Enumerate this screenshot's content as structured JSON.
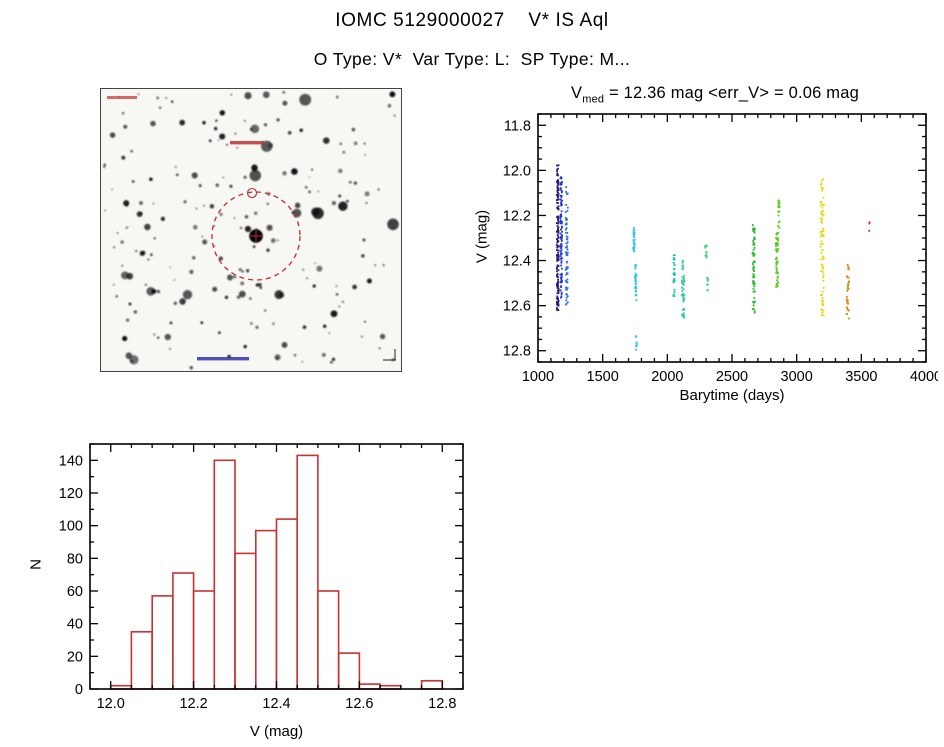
{
  "page": {
    "title": "IOMC 5129000027    V* IS Aql",
    "subtitle": "O Type: V*  Var Type: L:  SP Type: M..."
  },
  "finder_chart": {
    "description": "grayscale star-field finder chart with target star circled in red",
    "annotation_color": "#c03030",
    "annotation_color2": "#3333aa"
  },
  "chart_data": [
    {
      "type": "scatter",
      "title": "V_med = 12.36 mag <err_V> = 0.06 mag",
      "title_parts": {
        "base": "V",
        "sub": "med",
        "rest": " = 12.36 mag <err_V> = 0.06 mag"
      },
      "v_med_mag": 12.36,
      "err_v_mag": 0.06,
      "xlabel": "Barytime (days)",
      "ylabel": "V (mag)",
      "xlim": [
        1000,
        4000
      ],
      "ylim": [
        11.75,
        12.85
      ],
      "y_axis_inverted_magnitudes": true,
      "xticks": [
        1000,
        1500,
        2000,
        2500,
        3000,
        3500,
        4000
      ],
      "xtick_labels": [
        "1000",
        "1500",
        "2000",
        "2500",
        "3000",
        "3500",
        "4000"
      ],
      "yticks": [
        11.8,
        12.0,
        12.2,
        12.4,
        12.6,
        12.8
      ],
      "ytick_labels": [
        "11.8",
        "12.0",
        "12.2",
        "12.4",
        "12.6",
        "12.8"
      ],
      "x_minor_step": 100,
      "y_minor_step": 0.05,
      "legend_position": "none",
      "grid": false,
      "clusters": [
        {
          "x": 1152,
          "dx": 7,
          "y1": 11.97,
          "y2": 12.62,
          "n": 150,
          "color": "#2a1a7a"
        },
        {
          "x": 1180,
          "dx": 7,
          "y1": 12.03,
          "y2": 12.58,
          "n": 100,
          "color": "#2439c8"
        },
        {
          "x": 1222,
          "dx": 9,
          "y1": 12.06,
          "y2": 12.6,
          "n": 70,
          "color": "#2f6fe8"
        },
        {
          "x": 1742,
          "dx": 6,
          "y1": 12.24,
          "y2": 12.36,
          "n": 26,
          "color": "#29c5e6"
        },
        {
          "x": 1755,
          "dx": 6,
          "y1": 12.42,
          "y2": 12.58,
          "n": 30,
          "color": "#29c5e6"
        },
        {
          "x": 1760,
          "dx": 4,
          "y1": 12.73,
          "y2": 12.8,
          "n": 8,
          "color": "#29c5e6"
        },
        {
          "x": 2052,
          "dx": 6,
          "y1": 12.35,
          "y2": 12.56,
          "n": 30,
          "color": "#19c2b4"
        },
        {
          "x": 2122,
          "dx": 10,
          "y1": 12.4,
          "y2": 12.66,
          "n": 45,
          "color": "#2ec9a0"
        },
        {
          "x": 2298,
          "dx": 6,
          "y1": 12.33,
          "y2": 12.41,
          "n": 12,
          "color": "#37d077"
        },
        {
          "x": 2310,
          "dx": 4,
          "y1": 12.47,
          "y2": 12.54,
          "n": 8,
          "color": "#37d077"
        },
        {
          "x": 2668,
          "dx": 9,
          "y1": 12.24,
          "y2": 12.64,
          "n": 65,
          "color": "#2db82d"
        },
        {
          "x": 2848,
          "dx": 9,
          "y1": 12.27,
          "y2": 12.52,
          "n": 60,
          "color": "#5fcc1e"
        },
        {
          "x": 2862,
          "dx": 6,
          "y1": 12.1,
          "y2": 12.28,
          "n": 22,
          "color": "#5fcc1e"
        },
        {
          "x": 3198,
          "dx": 12,
          "y1": 12.04,
          "y2": 12.65,
          "n": 75,
          "color": "#e3d800"
        },
        {
          "x": 3396,
          "dx": 10,
          "y1": 12.4,
          "y2": 12.66,
          "n": 35,
          "color": "#d98a1f"
        },
        {
          "x": 3562,
          "dx": 2,
          "y1": 12.23,
          "y2": 12.27,
          "n": 3,
          "color": "#cf2a18"
        }
      ]
    },
    {
      "type": "bar",
      "title": "",
      "xlabel": "V (mag)",
      "ylabel": "N",
      "bin_start": 12.0,
      "bin_width": 0.05,
      "counts": [
        2,
        35,
        57,
        71,
        60,
        140,
        83,
        97,
        104,
        143,
        60,
        22,
        3,
        2,
        0,
        5
      ],
      "xlim": [
        11.95,
        12.85
      ],
      "ylim": [
        0,
        150
      ],
      "xticks": [
        12.0,
        12.2,
        12.4,
        12.6,
        12.8
      ],
      "xtick_labels": [
        "12.0",
        "12.2",
        "12.4",
        "12.6",
        "12.8"
      ],
      "yticks": [
        0,
        20,
        40,
        60,
        80,
        100,
        120,
        140
      ],
      "ytick_labels": [
        "0",
        "20",
        "40",
        "60",
        "80",
        "100",
        "120",
        "140"
      ],
      "x_minor_step": 0.05,
      "y_minor_step": 10,
      "grid": false,
      "bar_color": "#c83232"
    }
  ]
}
